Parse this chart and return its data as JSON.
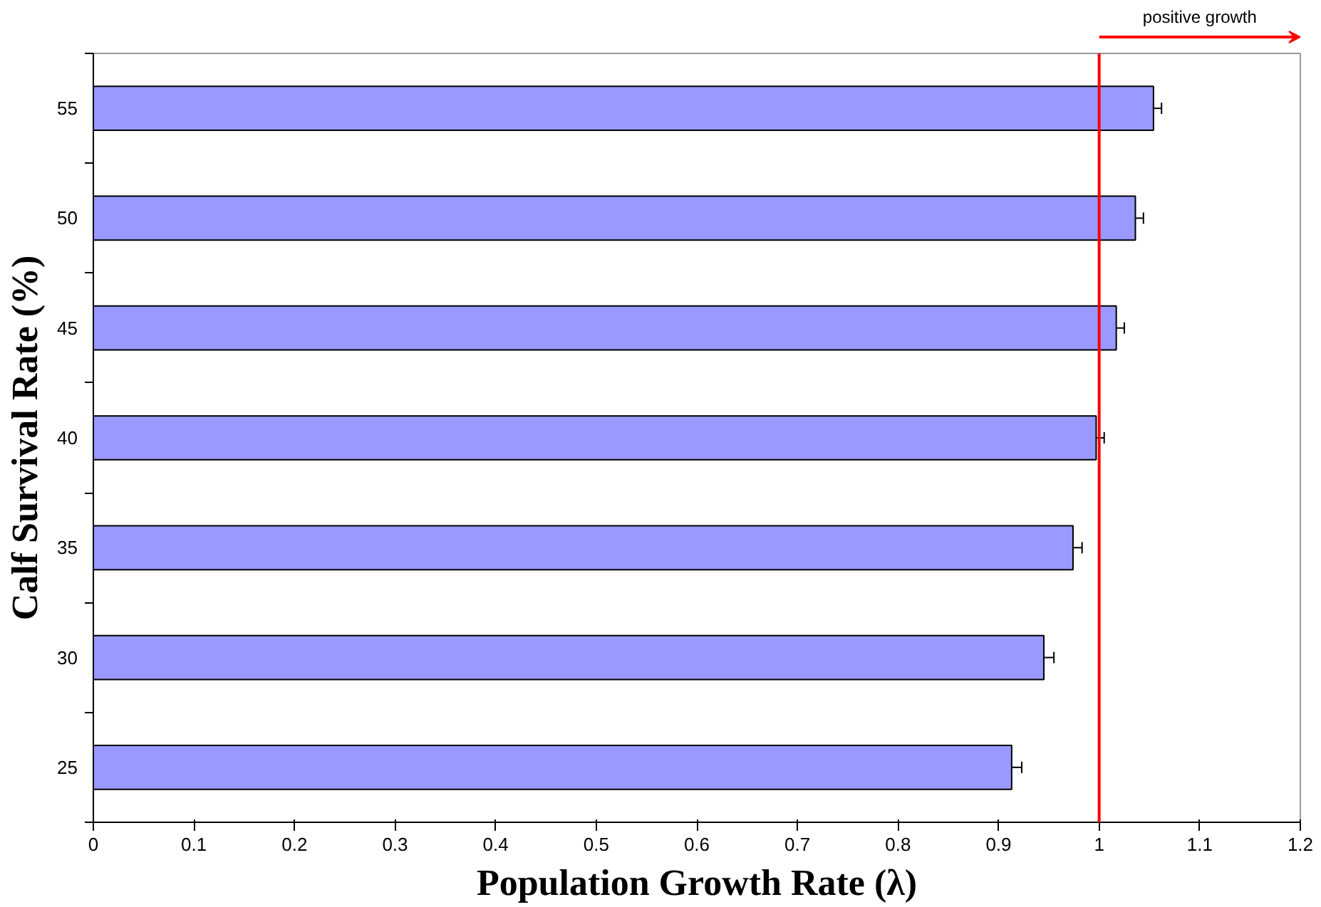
{
  "chart_data": {
    "type": "bar",
    "orientation": "horizontal",
    "xlabel": "Population Growth Rate (λ)",
    "ylabel": "Calf Survival Rate (%)",
    "categories": [
      "55",
      "50",
      "45",
      "40",
      "35",
      "30",
      "25"
    ],
    "values": [
      1.054,
      1.036,
      1.017,
      0.997,
      0.974,
      0.945,
      0.913
    ],
    "errors": [
      0.008,
      0.008,
      0.008,
      0.008,
      0.009,
      0.01,
      0.01
    ],
    "color": "#9999ff",
    "xlim": [
      0,
      1.2
    ],
    "xticks": [
      0,
      0.1,
      0.2,
      0.3,
      0.4,
      0.5,
      0.6,
      0.7,
      0.8,
      0.9,
      1,
      1.1,
      1.2
    ],
    "ref_lines": [
      {
        "axis": "x",
        "value": 1,
        "color": "#ff0000"
      }
    ],
    "annotations": [
      "positive growth"
    ],
    "grid": false
  }
}
